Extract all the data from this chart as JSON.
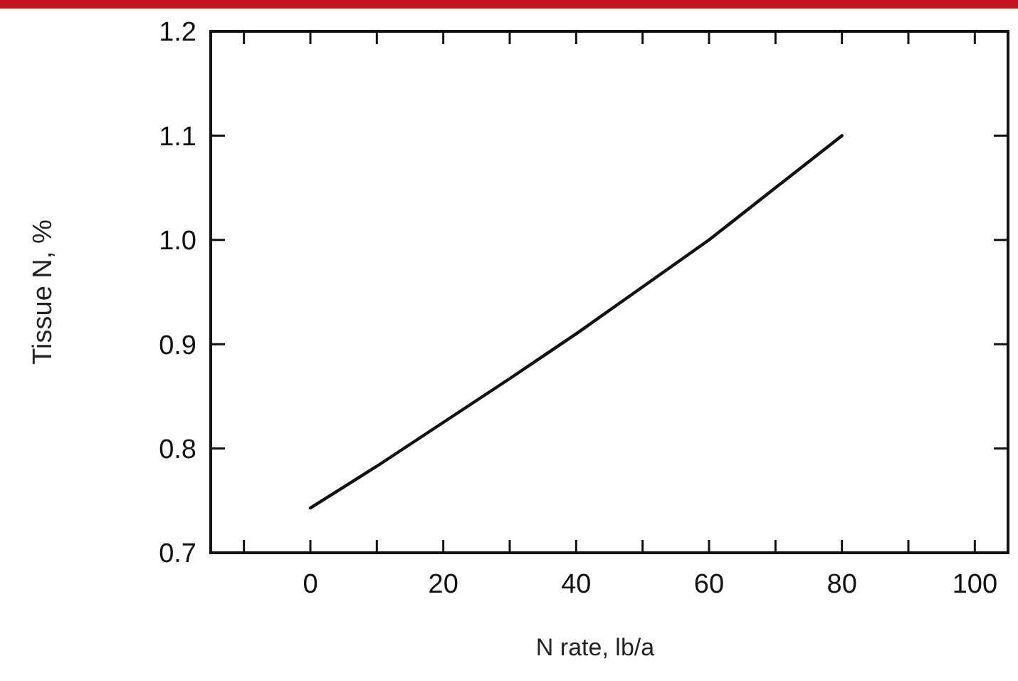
{
  "chart_data": {
    "type": "line",
    "xlabel": "N rate, lb/a",
    "ylabel": "Tissue N, %",
    "x": [
      0,
      10,
      20,
      30,
      40,
      50,
      60,
      70,
      80
    ],
    "series": [
      {
        "color": "#111111",
        "values": [
          0.743,
          0.783,
          0.825,
          0.867,
          0.91,
          0.955,
          1.0,
          1.05,
          1.1
        ]
      }
    ],
    "xlim": [
      -15,
      105
    ],
    "xticks": [
      {
        "value": -10,
        "label": null
      },
      0,
      {
        "value": 10,
        "label": null
      },
      20,
      {
        "value": 30,
        "label": null
      },
      40,
      {
        "value": 50,
        "label": null
      },
      60,
      {
        "value": 70,
        "label": null
      },
      80,
      {
        "value": 90,
        "label": null
      },
      100
    ],
    "ylim": [
      0.7,
      1.2
    ],
    "yticks": [
      {
        "value": 0.7,
        "label": "0.7"
      },
      {
        "value": 0.8,
        "label": "0.8"
      },
      {
        "value": 0.9,
        "label": "0.9"
      },
      {
        "value": 1.0,
        "label": "1.0"
      },
      {
        "value": 1.1,
        "label": "1.1"
      },
      {
        "value": 1.2,
        "label": "1.2"
      }
    ],
    "grid": false,
    "marker": "none",
    "line_style": "solid"
  }
}
